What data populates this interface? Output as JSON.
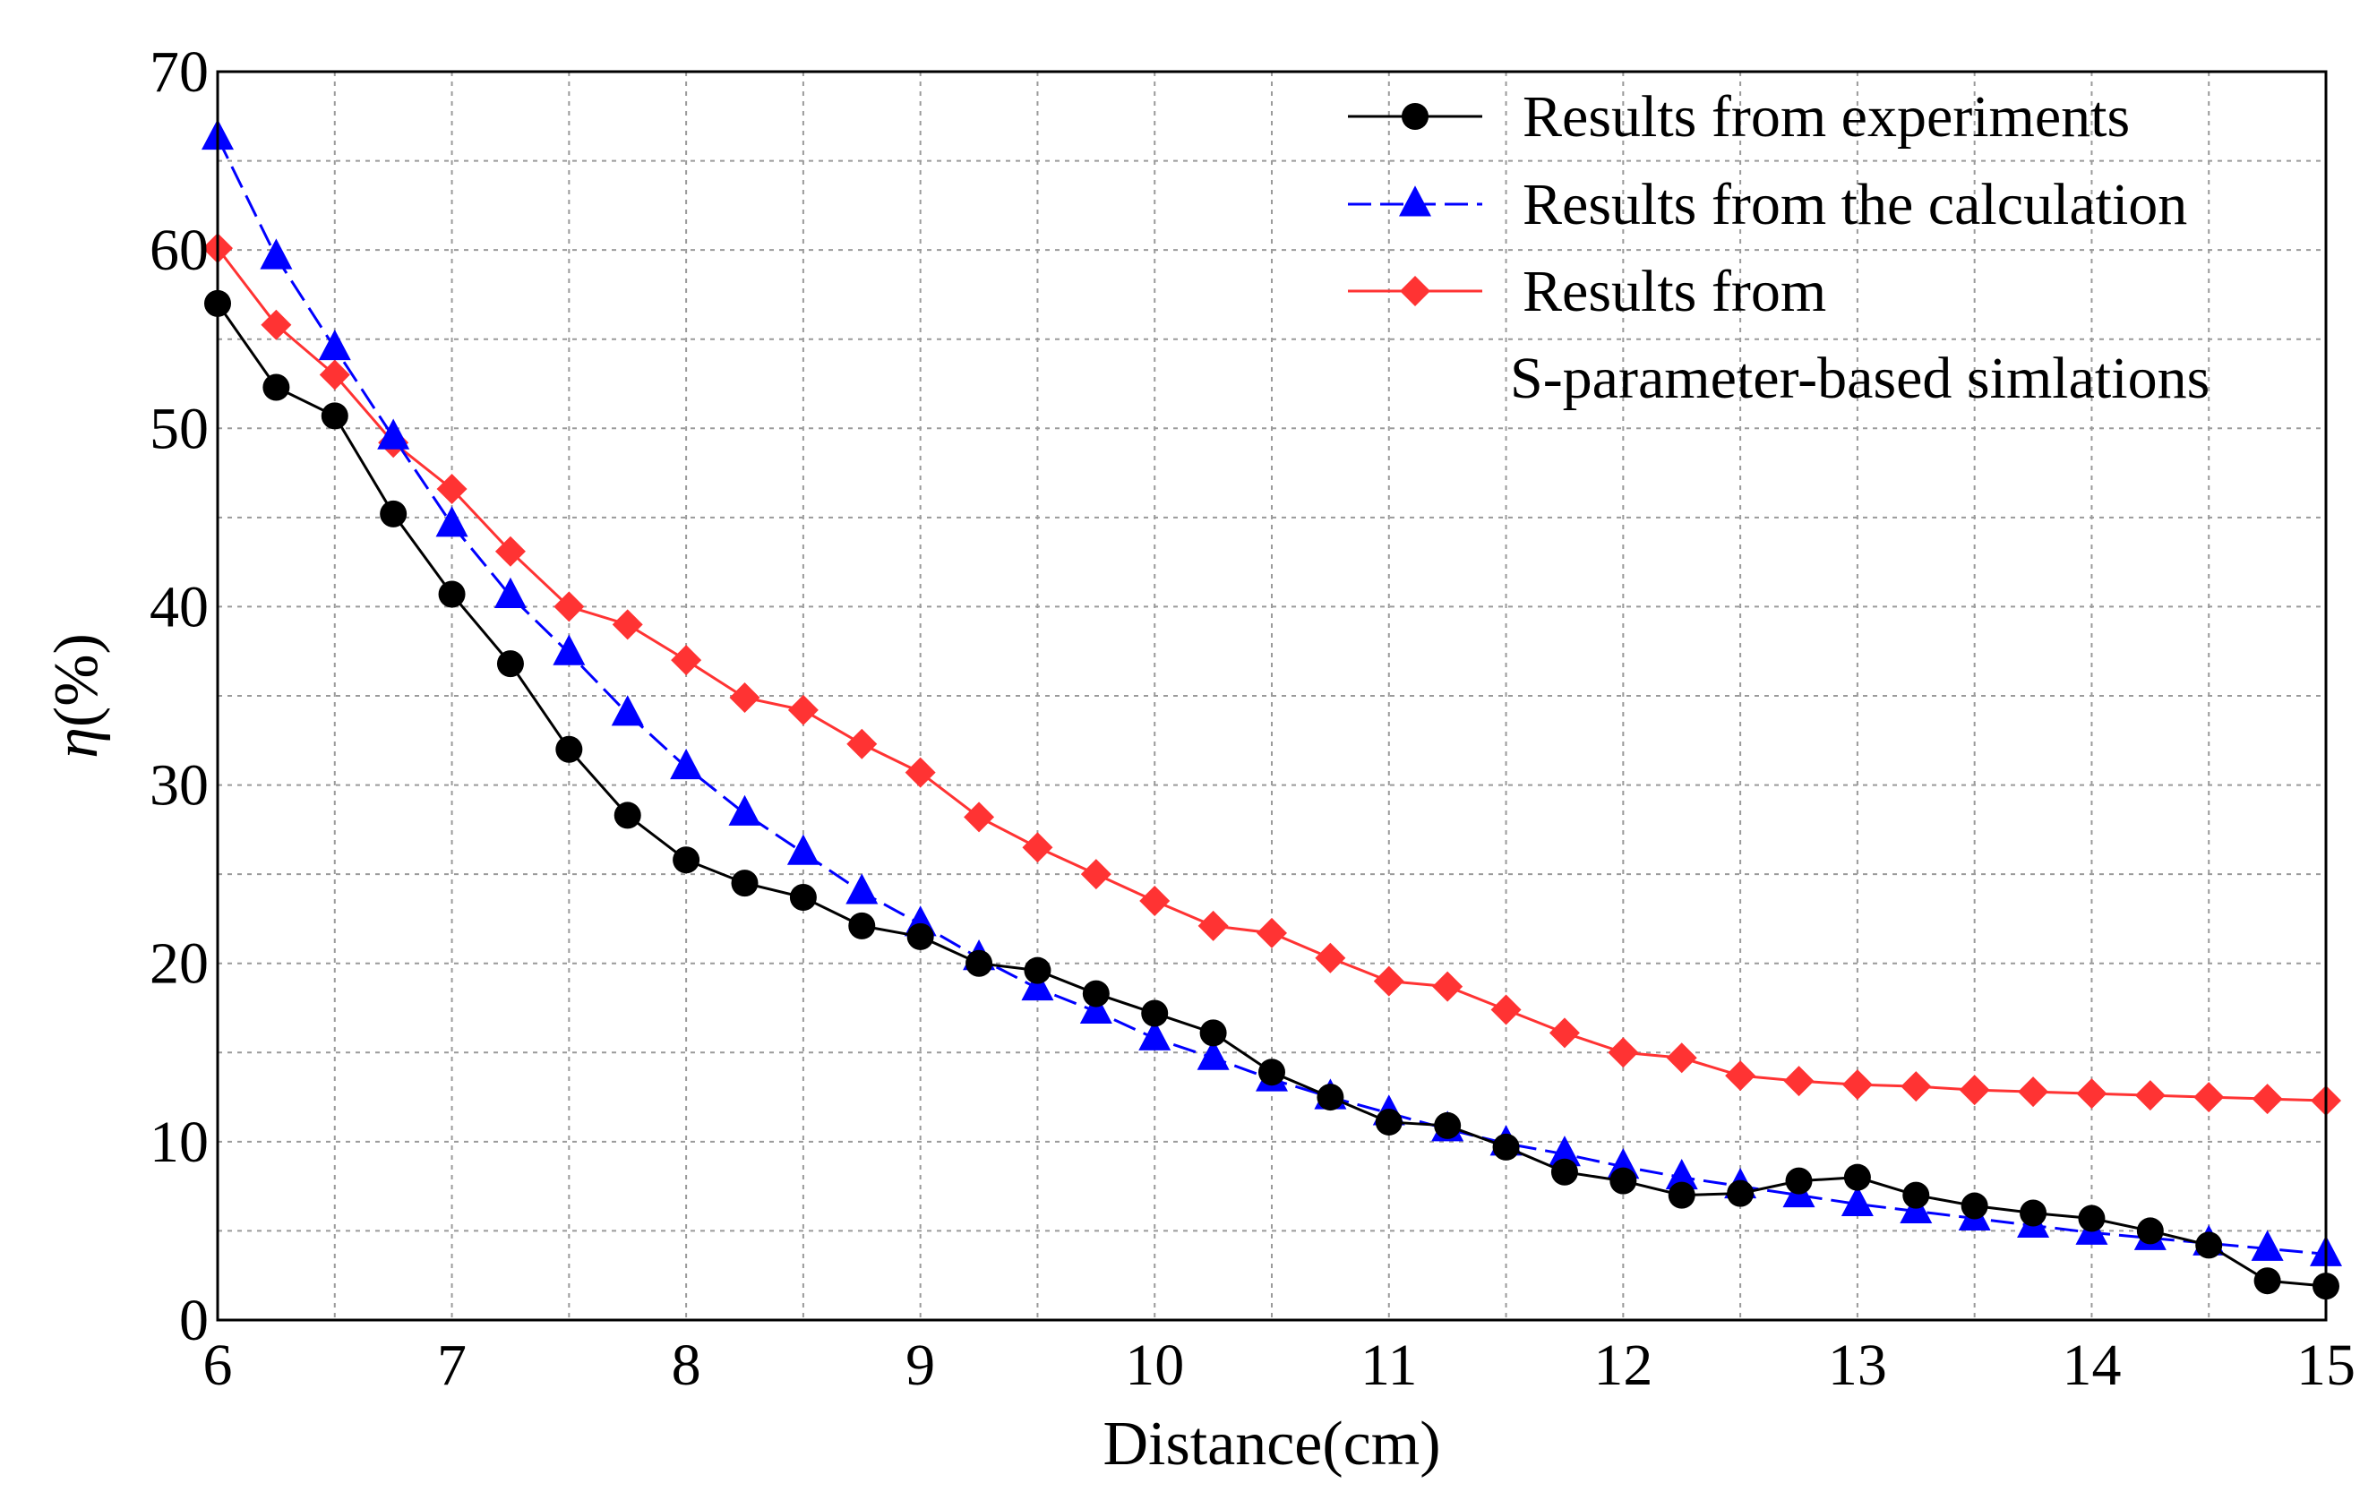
{
  "chart_data": {
    "type": "line",
    "xlabel": "Distance(cm)",
    "ylabel_symbol": "η",
    "ylabel_unit": "(%)",
    "xlim": [
      6,
      15
    ],
    "ylim": [
      0,
      70
    ],
    "xticks": [
      6,
      7,
      8,
      9,
      10,
      11,
      12,
      13,
      14,
      15
    ],
    "yticks": [
      0,
      10,
      20,
      30,
      40,
      50,
      60,
      70
    ],
    "x_minor_step": 0.5,
    "y_minor_step": 5,
    "grid": true,
    "legend_position": "top-right",
    "x": [
      6,
      6.25,
      6.5,
      6.75,
      7,
      7.25,
      7.5,
      7.75,
      8,
      8.25,
      8.5,
      8.75,
      9,
      9.25,
      9.5,
      9.75,
      10,
      10.25,
      10.5,
      10.75,
      11,
      11.25,
      11.5,
      11.75,
      12,
      12.25,
      12.5,
      12.75,
      13,
      13.25,
      13.5,
      13.75,
      14,
      14.25,
      14.5,
      14.75,
      15
    ],
    "series": [
      {
        "name": "Results from experiments",
        "color": "#000000",
        "marker": "circle",
        "dashed": false,
        "values": [
          57.0,
          52.3,
          50.7,
          45.2,
          40.7,
          36.8,
          32.0,
          28.3,
          25.8,
          24.5,
          23.7,
          22.1,
          21.5,
          20.0,
          19.6,
          18.3,
          17.2,
          16.1,
          13.9,
          12.5,
          11.1,
          10.9,
          9.7,
          8.3,
          7.8,
          7.0,
          7.1,
          7.8,
          8.0,
          7.0,
          6.4,
          6.0,
          5.7,
          5.0,
          4.2,
          2.2,
          1.9
        ]
      },
      {
        "name": "Results from the calculation",
        "color": "#0000ff",
        "marker": "triangle",
        "dashed": true,
        "values": [
          66.3,
          59.6,
          54.5,
          49.5,
          44.6,
          40.6,
          37.4,
          34.0,
          31.0,
          28.4,
          26.2,
          24.0,
          22.2,
          20.3,
          18.6,
          17.3,
          15.8,
          14.7,
          13.5,
          12.5,
          11.6,
          10.7,
          9.9,
          9.3,
          8.6,
          8.0,
          7.5,
          7.0,
          6.5,
          6.1,
          5.7,
          5.3,
          4.9,
          4.6,
          4.3,
          4.0,
          3.7
        ]
      },
      {
        "name": "Results from S-parameter-based simlations",
        "color": "#ff3333",
        "marker": "diamond",
        "dashed": false,
        "values": [
          60.1,
          55.8,
          53.0,
          49.2,
          46.6,
          43.1,
          40.0,
          39.0,
          37.0,
          34.9,
          34.2,
          32.3,
          30.7,
          28.2,
          26.5,
          25.0,
          23.5,
          22.1,
          21.7,
          20.3,
          19.0,
          18.7,
          17.4,
          16.1,
          15.0,
          14.7,
          13.7,
          13.4,
          13.2,
          13.1,
          12.9,
          12.8,
          12.7,
          12.6,
          12.5,
          12.4,
          12.3
        ]
      }
    ],
    "legend": [
      {
        "lines": [
          "Results from experiments"
        ]
      },
      {
        "lines": [
          "Results from the calculation"
        ]
      },
      {
        "lines": [
          "Results from",
          "S-parameter-based simlations"
        ]
      }
    ]
  }
}
